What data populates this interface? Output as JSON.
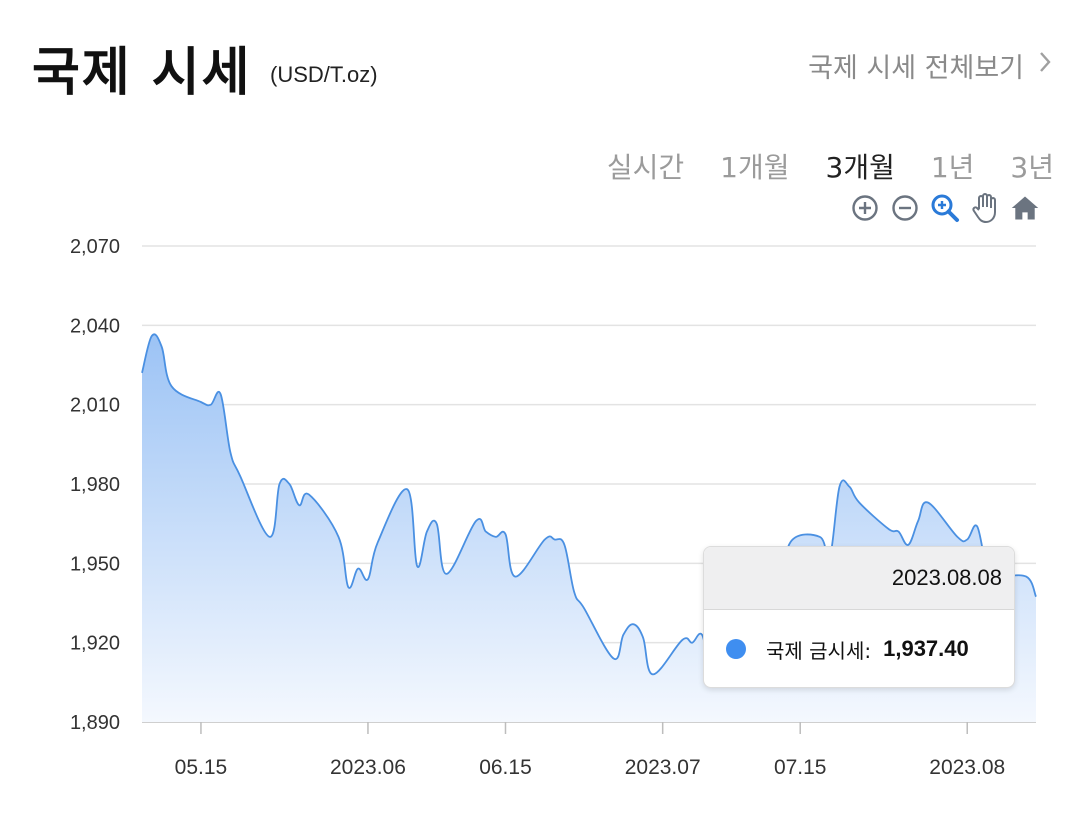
{
  "header": {
    "title": "국제 시세",
    "unit": "(USD/T.oz)",
    "view_all": "국제 시세 전체보기",
    "chevron_icon": "chevron-right-icon"
  },
  "tabs": [
    {
      "label": "실시간",
      "active": false
    },
    {
      "label": "1개월",
      "active": false
    },
    {
      "label": "3개월",
      "active": true
    },
    {
      "label": "1년",
      "active": false
    },
    {
      "label": "3년",
      "active": false
    }
  ],
  "tools": [
    {
      "name": "zoom-in-icon",
      "active": false
    },
    {
      "name": "zoom-out-icon",
      "active": false
    },
    {
      "name": "magnify-icon",
      "active": true
    },
    {
      "name": "pan-hand-icon",
      "active": false
    },
    {
      "name": "home-icon",
      "active": false
    }
  ],
  "colors": {
    "line": "#4a90e2",
    "fill_top": "#9cc3f5",
    "fill_bottom": "#f4f8fe",
    "active_tool": "#2a7ad8",
    "tool": "#6b7480",
    "dot": "#3f8ef0"
  },
  "tooltip": {
    "date": "2023.08.08",
    "label": "국제 금시세:",
    "value": "1,937.40"
  },
  "chart_data": {
    "type": "area",
    "ylim": [
      1890,
      2070
    ],
    "yticks": [
      1890,
      1920,
      1950,
      1980,
      2010,
      2040,
      2070
    ],
    "ytick_labels": [
      "1,890",
      "1,920",
      "1,950",
      "1,980",
      "2,010",
      "2,040",
      "2,070"
    ],
    "xlim": [
      "2023-05-09",
      "2023-08-08"
    ],
    "xticks": [
      "2023-05-15",
      "2023-06-01",
      "2023-06-15",
      "2023-07-01",
      "2023-07-15",
      "2023-08-01"
    ],
    "xtick_labels": [
      "05.15",
      "2023.06",
      "06.15",
      "2023.07",
      "07.15",
      "2023.08"
    ],
    "grid": true,
    "series": [
      {
        "x": [
          "2023-05-09",
          "2023-05-10",
          "2023-05-11",
          "2023-05-12",
          "2023-05-15",
          "2023-05-16",
          "2023-05-17",
          "2023-05-18",
          "2023-05-19",
          "2023-05-22",
          "2023-05-23",
          "2023-05-24",
          "2023-05-25",
          "2023-05-26",
          "2023-05-29",
          "2023-05-30",
          "2023-05-31",
          "2023-06-01",
          "2023-06-02",
          "2023-06-05",
          "2023-06-06",
          "2023-06-07",
          "2023-06-08",
          "2023-06-09",
          "2023-06-12",
          "2023-06-13",
          "2023-06-14",
          "2023-06-15",
          "2023-06-16",
          "2023-06-19",
          "2023-06-20",
          "2023-06-21",
          "2023-06-22",
          "2023-06-23",
          "2023-06-26",
          "2023-06-27",
          "2023-06-28",
          "2023-06-29",
          "2023-06-30",
          "2023-07-03",
          "2023-07-04",
          "2023-07-05",
          "2023-07-06",
          "2023-07-07",
          "2023-07-10",
          "2023-07-11",
          "2023-07-12",
          "2023-07-13",
          "2023-07-14",
          "2023-07-17",
          "2023-07-18",
          "2023-07-19",
          "2023-07-20",
          "2023-07-21",
          "2023-07-24",
          "2023-07-25",
          "2023-07-26",
          "2023-07-27",
          "2023-07-28",
          "2023-07-31",
          "2023-08-01",
          "2023-08-02",
          "2023-08-03",
          "2023-08-04",
          "2023-08-07",
          "2023-08-08"
        ],
        "values": [
          2022,
          2036,
          2032,
          2017,
          2011,
          2010,
          2014,
          1992,
          1983,
          1960,
          1980,
          1980,
          1972,
          1976,
          1960,
          1941,
          1948,
          1944,
          1958,
          1978,
          1949,
          1962,
          1965,
          1946,
          1966,
          1962,
          1960,
          1961,
          1945,
          1959,
          1959,
          1957,
          1939,
          1933,
          1914,
          1923,
          1927,
          1922,
          1908,
          1921,
          1920,
          1923,
          1910,
          1931,
          1921,
          1934,
          1935,
          1938,
          1958,
          1960,
          1952,
          1979,
          1979,
          1973,
          1963,
          1962,
          1957,
          1966,
          1973,
          1960,
          1959,
          1964,
          1948,
          1945,
          1945,
          1937.4
        ]
      }
    ]
  }
}
